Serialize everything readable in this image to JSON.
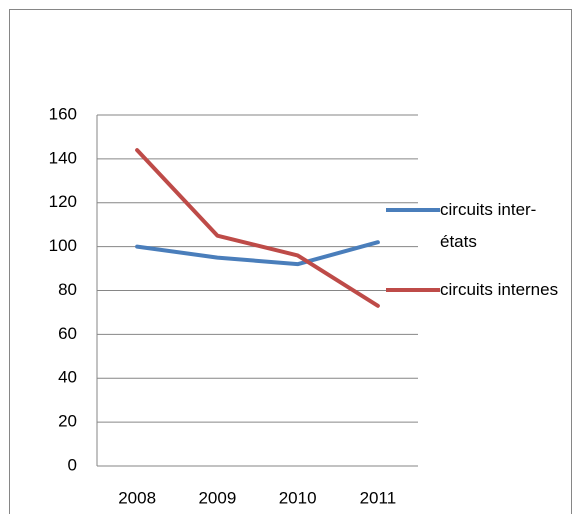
{
  "chart_data": {
    "type": "line",
    "categories": [
      "2008",
      "2009",
      "2010",
      "2011"
    ],
    "series": [
      {
        "name": "circuits inter-états",
        "color": "#4a7ebb",
        "values": [
          100,
          95,
          92,
          102
        ]
      },
      {
        "name": "circuits internes",
        "color": "#be4b48",
        "values": [
          144,
          105,
          96,
          73
        ]
      }
    ],
    "ylim": [
      0,
      160
    ],
    "yticks": [
      0,
      20,
      40,
      60,
      80,
      100,
      120,
      140,
      160
    ],
    "grid": true,
    "legend": "right"
  }
}
